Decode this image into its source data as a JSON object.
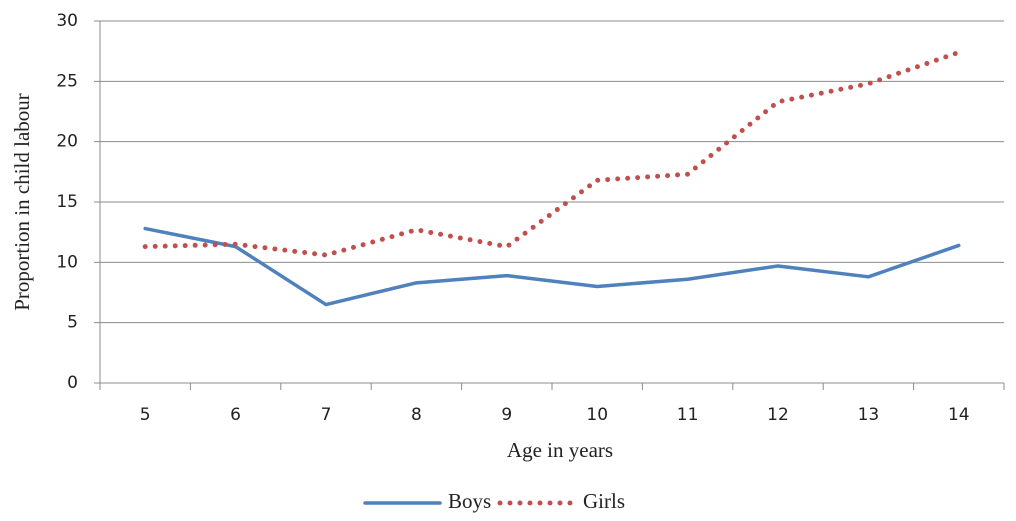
{
  "chart_data": {
    "type": "line",
    "x_label": "Age in years",
    "y_label": "Proportion in child labour",
    "categories": [
      "5",
      "6",
      "7",
      "8",
      "9",
      "10",
      "11",
      "12",
      "13",
      "14"
    ],
    "series": [
      {
        "name": "Boys",
        "color": "#4f81bd",
        "values": [
          12.8,
          11.3,
          6.5,
          8.3,
          8.9,
          8.0,
          8.6,
          9.7,
          8.8,
          11.4
        ]
      },
      {
        "name": "Girls",
        "color": "#c0504d",
        "style": "dotted",
        "values": [
          11.3,
          11.5,
          10.6,
          12.7,
          11.3,
          16.8,
          17.3,
          23.3,
          24.8,
          27.4
        ]
      }
    ],
    "ylim": [
      0,
      30
    ],
    "yticks": [
      0,
      5,
      10,
      15,
      20,
      25,
      30
    ],
    "grid": true
  }
}
